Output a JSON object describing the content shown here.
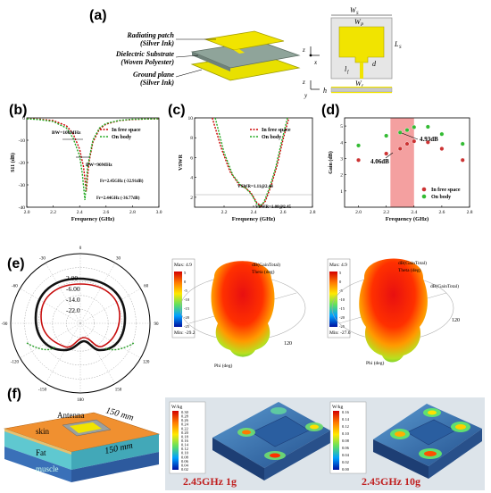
{
  "panel_labels": {
    "a": "(a)",
    "b": "(b)",
    "c": "(c)",
    "d": "(d)",
    "e": "(e)",
    "f": "(f)"
  },
  "panel_a": {
    "layer_top": "Radiating patch",
    "layer_top_sub": "(Silver Ink)",
    "layer_mid": "Dielectric Substrate",
    "layer_mid_sub": "(Woven Polyester)",
    "layer_bot": "Ground plane",
    "layer_bot_sub": "(Silver Ink)",
    "dims": {
      "ws": "W",
      "ws_sub": "S",
      "wp": "W",
      "wp_sub": "P",
      "ls": "L",
      "ls_sub": "S",
      "lp": "L",
      "lp_sub": "P",
      "lf": "l",
      "lf_sub": "f",
      "wf": "W",
      "wf_sub": "f",
      "d": "d",
      "h": "h"
    },
    "axes": {
      "z": "z",
      "y": "y",
      "x": "x"
    }
  },
  "chart_b": {
    "type": "line",
    "ylabel": "S11 (dB)",
    "xlabel": "Frequency (GHz)",
    "xlim": [
      2.0,
      3.0
    ],
    "ylim": [
      -40,
      0
    ],
    "xticks": [
      "2.0",
      "2.2",
      "2.4",
      "2.6",
      "2.8",
      "3.0"
    ],
    "yticks": [
      "0",
      "-10",
      "-20",
      "-30",
      "-40"
    ],
    "legend": [
      "In free space",
      "On body"
    ],
    "ann_bw1": "BW=100MHz",
    "ann_bw2": "BW=90MHz",
    "ann_fr1": "Fr=2.45GHz (-32.91dB)",
    "ann_fr2": "Fr=2.44GHz (-36.77dB)",
    "series": [
      {
        "name": "In free space",
        "color": "#cc0000",
        "x": [
          2.0,
          2.1,
          2.2,
          2.3,
          2.35,
          2.4,
          2.43,
          2.45,
          2.47,
          2.5,
          2.55,
          2.6,
          2.7,
          2.8,
          2.9,
          3.0
        ],
        "y": [
          -0.3,
          -0.6,
          -1.2,
          -3.5,
          -7,
          -14,
          -22,
          -32.9,
          -20,
          -11,
          -5,
          -2.8,
          -1.2,
          -0.7,
          -0.5,
          -0.4
        ]
      },
      {
        "name": "On body",
        "color": "#22aa22",
        "x": [
          2.0,
          2.1,
          2.2,
          2.3,
          2.35,
          2.4,
          2.42,
          2.44,
          2.46,
          2.5,
          2.55,
          2.6,
          2.7,
          2.8,
          2.9,
          3.0
        ],
        "y": [
          -0.4,
          -0.8,
          -1.6,
          -4.5,
          -9,
          -17,
          -25,
          -36.8,
          -22,
          -10,
          -4.5,
          -2.5,
          -1.1,
          -0.6,
          -0.5,
          -0.4
        ]
      }
    ]
  },
  "chart_c": {
    "type": "line",
    "ylabel": "VSWR",
    "xlabel": "Frequency (GHz)",
    "xlim": [
      2.0,
      2.8
    ],
    "ylim": [
      1,
      10
    ],
    "xticks": [
      "2.2",
      "2.4",
      "2.6",
      "2.8"
    ],
    "yticks": [
      "10",
      "8",
      "6",
      "4",
      "2"
    ],
    "legend": [
      "In free space",
      "On body"
    ],
    "ann1": "VSWR=1.11@2.44",
    "ann2": "VSWR=1.08@2.45",
    "series": [
      {
        "name": "In free space",
        "color": "#cc0000",
        "x": [
          2.12,
          2.18,
          2.24,
          2.3,
          2.34,
          2.38,
          2.42,
          2.45,
          2.48,
          2.52,
          2.56,
          2.6,
          2.64
        ],
        "y": [
          10,
          7,
          4.6,
          3.3,
          3.0,
          2.5,
          1.5,
          1.1,
          1.6,
          3.2,
          5.2,
          7.8,
          10
        ]
      },
      {
        "name": "On body",
        "color": "#22aa22",
        "x": [
          2.14,
          2.2,
          2.26,
          2.32,
          2.35,
          2.39,
          2.42,
          2.44,
          2.47,
          2.51,
          2.55,
          2.59,
          2.63
        ],
        "y": [
          10,
          6.5,
          4.2,
          3.1,
          2.9,
          2.2,
          1.4,
          1.08,
          1.5,
          3.0,
          5.0,
          7.6,
          10
        ]
      }
    ]
  },
  "chart_d": {
    "type": "scatter",
    "ylabel": "Gain (dB)",
    "xlabel": "Frequency (GHz)",
    "xlim": [
      1.9,
      2.8
    ],
    "ylim": [
      0,
      5.5
    ],
    "xticks": [
      "2.0",
      "2.2",
      "2.4",
      "2.6",
      "2.8"
    ],
    "yticks": [
      "5",
      "4",
      "3",
      "2",
      "1"
    ],
    "legend": [
      "In free space",
      "On body"
    ],
    "ann1": "4.93dB",
    "ann2": "4.06dB",
    "band": [
      2.23,
      2.4
    ],
    "series": [
      {
        "name": "In free space",
        "color": "#cc3333",
        "x": [
          2.0,
          2.2,
          2.3,
          2.35,
          2.4,
          2.5,
          2.6,
          2.75
        ],
        "y": [
          2.9,
          3.3,
          3.6,
          3.9,
          4.06,
          4.0,
          3.6,
          2.9
        ]
      },
      {
        "name": "On body",
        "color": "#33bb33",
        "x": [
          2.0,
          2.2,
          2.3,
          2.35,
          2.4,
          2.5,
          2.6,
          2.75
        ],
        "y": [
          3.8,
          4.4,
          4.6,
          4.75,
          4.93,
          4.95,
          4.5,
          3.9
        ]
      }
    ]
  },
  "panel_e": {
    "polar_ticks": [
      "2.00",
      "-6.00",
      "-14.0",
      "-22.0"
    ],
    "angles": [
      "0",
      "30",
      "60",
      "90",
      "120",
      "150",
      "180",
      "-150",
      "-120",
      "-90",
      "-60",
      "-30"
    ],
    "legend_a": {
      "max": "Max: 4.9",
      "min": "Min: -29.2",
      "ticks": [
        "5",
        "0",
        "-5",
        "-10",
        "-15",
        "-20",
        "-25"
      ]
    },
    "legend_b": {
      "max": "Max: 4.9",
      "min": "Min: -27.6",
      "ticks": [
        "5",
        "0",
        "-5",
        "-10",
        "-15",
        "-20",
        "-25"
      ]
    },
    "labels": [
      "dB(GainTotal)",
      "Theta (deg)",
      "Phi (deg)",
      "dB(GainTotal)"
    ]
  },
  "panel_f": {
    "antenna": "Antenna",
    "skin": "skin",
    "fat": "Fat",
    "muscle": "muscle",
    "dim1": "150 mm",
    "dim2": "150 mm",
    "sar1": "2.45GHz 1g",
    "sar2": "2.45GHz 10g",
    "unit": "W/kg",
    "scale1": [
      "0.30",
      "0.28",
      "0.26",
      "0.24",
      "0.22",
      "0.20",
      "0.18",
      "0.16",
      "0.14",
      "0.12",
      "0.10",
      "0.08",
      "0.06",
      "0.04",
      "0.02"
    ],
    "scale2": [
      "0.16",
      "0.14",
      "0.12",
      "0.10",
      "0.08",
      "0.06",
      "0.04",
      "0.02",
      "0.00"
    ]
  }
}
